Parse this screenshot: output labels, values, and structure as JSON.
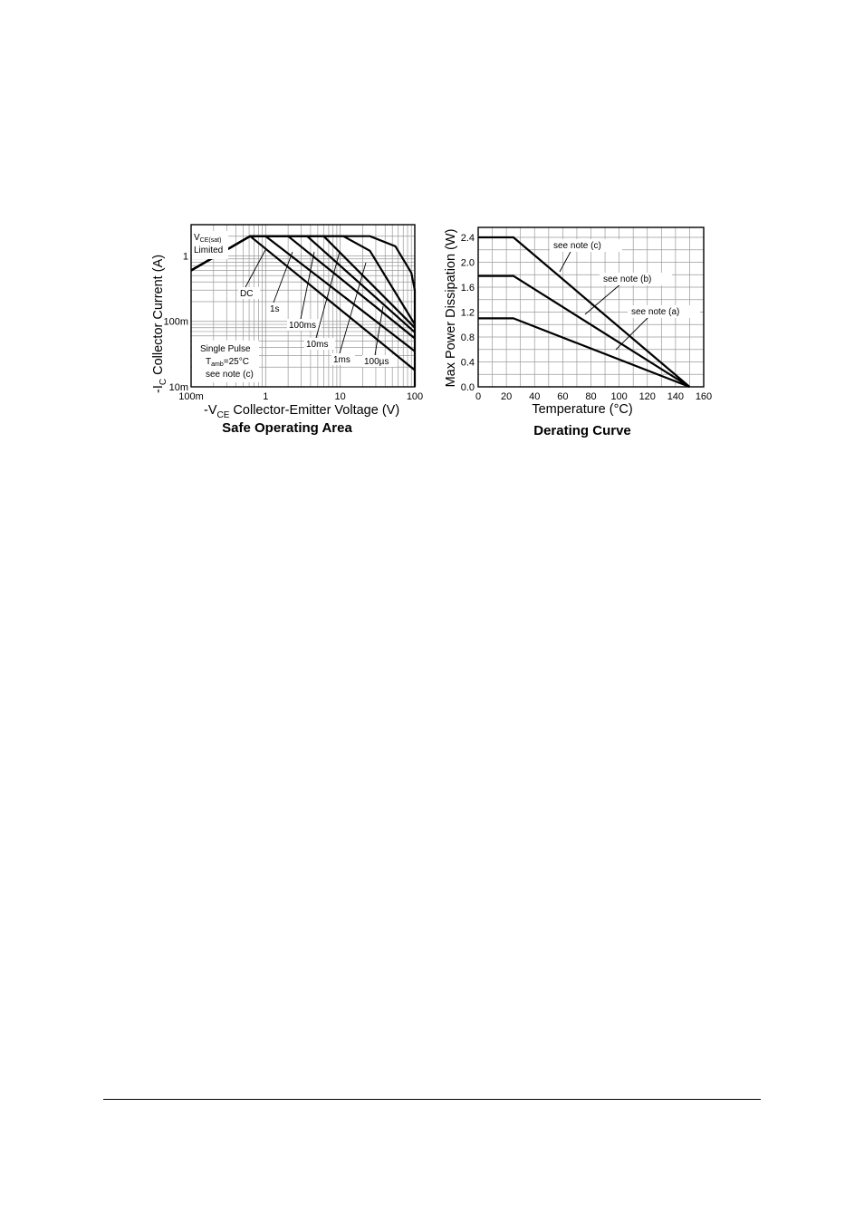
{
  "colors": {
    "line": "#000000",
    "grid": "#9a9a9a",
    "background": "#ffffff"
  },
  "chart_data": [
    {
      "type": "line",
      "title": "Safe Operating Area",
      "xlabel": {
        "prefix": "-V",
        "subscript": "CE",
        "text": "Collector-Emitter Voltage (V)"
      },
      "ylabel": {
        "prefix": "-I",
        "subscript": "C",
        "text": "Collector Current (A)"
      },
      "x_scale": "log",
      "y_scale": "log",
      "xlim": [
        0.1,
        100
      ],
      "ylim": [
        0.01,
        3
      ],
      "grid": true,
      "x_ticks": [
        {
          "value": 0.1,
          "label": "100m"
        },
        {
          "value": 1,
          "label": "1"
        },
        {
          "value": 10,
          "label": "10"
        },
        {
          "value": 100,
          "label": "100"
        }
      ],
      "y_ticks": [
        {
          "value": 1,
          "label": "1"
        },
        {
          "value": 0.1,
          "label": "100m"
        },
        {
          "value": 0.01,
          "label": "10m"
        }
      ],
      "series": [
        {
          "name": "DC",
          "x": [
            0.1,
            0.62,
            100
          ],
          "y": [
            0.6,
            2.0,
            0.018
          ]
        },
        {
          "name": "1s",
          "x": [
            0.1,
            0.62,
            1.0,
            100
          ],
          "y": [
            0.6,
            2.0,
            2.0,
            0.035
          ]
        },
        {
          "name": "100ms",
          "x": [
            0.1,
            0.62,
            2.0,
            100
          ],
          "y": [
            0.6,
            2.0,
            2.0,
            0.055
          ]
        },
        {
          "name": "10ms",
          "x": [
            0.1,
            0.62,
            3.6,
            100
          ],
          "y": [
            0.6,
            2.0,
            2.0,
            0.068
          ]
        },
        {
          "name": "1ms",
          "x": [
            0.1,
            0.62,
            6.0,
            100
          ],
          "y": [
            0.6,
            2.0,
            2.0,
            0.08
          ]
        },
        {
          "name": "100µs",
          "x": [
            0.1,
            0.62,
            11.0,
            25.0,
            100
          ],
          "y": [
            0.6,
            2.0,
            2.0,
            1.2,
            0.09
          ]
        },
        {
          "name": "",
          "x": [
            0.1,
            0.62,
            25.0,
            55.0,
            90.0,
            100,
            100
          ],
          "y": [
            0.6,
            2.0,
            2.0,
            1.4,
            0.55,
            0.3,
            0.01
          ]
        }
      ],
      "annotations": [
        {
          "lines": [
            {
              "main": "V",
              "sub": "CE(sat)"
            },
            {
              "main": "Limited"
            }
          ]
        },
        {
          "lines": [
            {
              "main": "DC"
            }
          ]
        },
        {
          "lines": [
            {
              "main": "1s"
            }
          ]
        },
        {
          "lines": [
            {
              "main": "100ms"
            }
          ]
        },
        {
          "lines": [
            {
              "main": "10ms"
            }
          ]
        },
        {
          "lines": [
            {
              "main": "1ms"
            }
          ]
        },
        {
          "lines": [
            {
              "main": "100µs"
            }
          ]
        },
        {
          "lines": [
            {
              "main": "Single Pulse"
            },
            {
              "main": "T",
              "sub": "amb",
              "after": "=25°C"
            },
            {
              "main": "see note (c)"
            }
          ]
        }
      ]
    },
    {
      "type": "line",
      "title": "Derating Curve",
      "xlabel": "Temperature (°C)",
      "ylabel": "Max Power Dissipation (W)",
      "xlim": [
        0,
        160
      ],
      "ylim": [
        0,
        2.56
      ],
      "grid": true,
      "x_ticks": [
        0,
        20,
        40,
        60,
        80,
        100,
        120,
        140,
        160
      ],
      "y_ticks": [
        "0.0",
        "0.4",
        "0.8",
        "1.2",
        "1.6",
        "2.0",
        "2.4"
      ],
      "series": [
        {
          "name": "see note (c)",
          "x": [
            0,
            25,
            150
          ],
          "y": [
            2.4,
            2.4,
            0.0
          ]
        },
        {
          "name": "see note (b)",
          "x": [
            0,
            25,
            150
          ],
          "y": [
            1.78,
            1.78,
            0.0
          ]
        },
        {
          "name": "see note (a)",
          "x": [
            0,
            25,
            150
          ],
          "y": [
            1.1,
            1.1,
            0.0
          ]
        }
      ]
    }
  ]
}
